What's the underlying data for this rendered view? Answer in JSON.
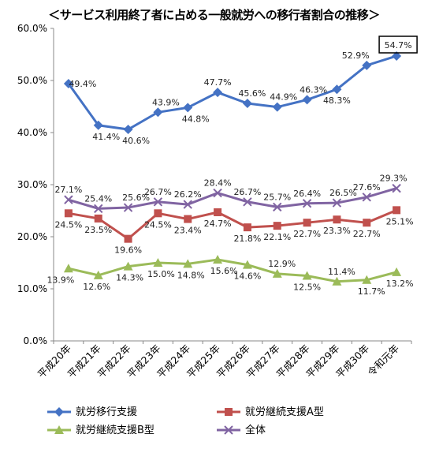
{
  "chart_data": {
    "type": "line",
    "title": "＜サービス利用終了者に占める一般就労への移行者割合の推移＞",
    "categories": [
      "平成20年",
      "平成21年",
      "平成22年",
      "平成23年",
      "平成24年",
      "平成25年",
      "平成26年",
      "平成27年",
      "平成28年",
      "平成29年",
      "平成30年",
      "令和元年"
    ],
    "ylim": [
      0,
      60
    ],
    "yticks": [
      "0.0%",
      "10.0%",
      "20.0%",
      "30.0%",
      "40.0%",
      "50.0%",
      "60.0%"
    ],
    "grid": false,
    "legend_position": "bottom",
    "series": [
      {
        "name": "就労移行支援",
        "color": "#4472C4",
        "marker": "diamond",
        "values": [
          49.4,
          41.4,
          40.6,
          43.9,
          44.8,
          47.7,
          45.6,
          44.9,
          46.3,
          48.3,
          52.9,
          54.7
        ],
        "labels": [
          "49.4%",
          "41.4%",
          "40.6%",
          "43.9%",
          "44.8%",
          "47.7%",
          "45.6%",
          "44.9%",
          "46.3%",
          "48.3%",
          "52.9%",
          "54.7%"
        ]
      },
      {
        "name": "就労継続支援A型",
        "color": "#C0504D",
        "marker": "square",
        "values": [
          24.5,
          23.5,
          19.6,
          24.5,
          23.4,
          24.7,
          21.8,
          22.1,
          22.7,
          23.3,
          22.7,
          25.1
        ],
        "labels": [
          "24.5%",
          "23.5%",
          "19.6%",
          "24.5%",
          "23.4%",
          "24.7%",
          "21.8%",
          "22.1%",
          "22.7%",
          "23.3%",
          "22.7%",
          "25.1%"
        ]
      },
      {
        "name": "就労継続支援B型",
        "color": "#9BBB59",
        "marker": "triangle",
        "values": [
          13.9,
          12.6,
          14.3,
          15.0,
          14.8,
          15.6,
          14.6,
          12.9,
          12.5,
          11.4,
          11.7,
          13.2
        ],
        "labels": [
          "13.9%",
          "12.6%",
          "14.3%",
          "15.0%",
          "14.8%",
          "15.6%",
          "14.6%",
          "12.9%",
          "12.5%",
          "11.4%",
          "11.7%",
          "13.2%"
        ]
      },
      {
        "name": "全体",
        "color": "#8064A2",
        "marker": "x",
        "values": [
          27.1,
          25.4,
          25.6,
          26.7,
          26.2,
          28.4,
          26.7,
          25.7,
          26.4,
          26.5,
          27.6,
          29.3
        ],
        "labels": [
          "27.1%",
          "25.4%",
          "25.6%",
          "26.7%",
          "26.2%",
          "28.4%",
          "26.7%",
          "25.7%",
          "26.4%",
          "26.5%",
          "27.6%",
          "29.3%"
        ]
      }
    ],
    "highlight": {
      "series": 0,
      "index": 11
    }
  }
}
